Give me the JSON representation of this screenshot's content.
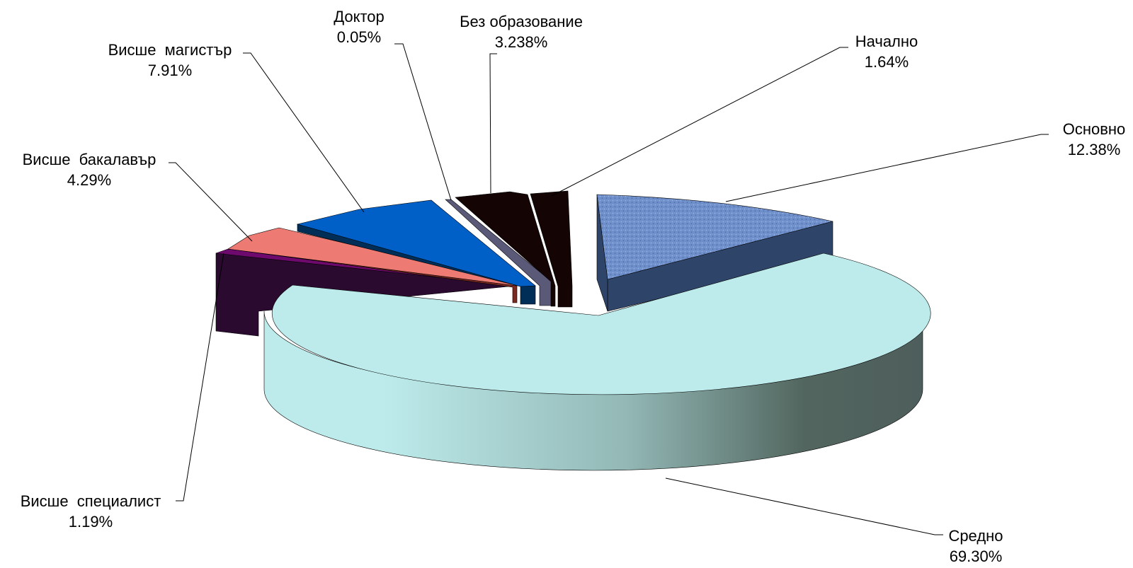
{
  "chart_data": {
    "type": "pie",
    "title": "",
    "style": "3d-exploded",
    "slices": [
      {
        "label": "Основно",
        "value": 12.38,
        "value_label": "12.38%",
        "color": "#6F8FCB",
        "side_color": "#2F4469",
        "pattern": "textured"
      },
      {
        "label": "Средно",
        "value": 69.3,
        "value_label": "69.30%",
        "color": "#BDEBEB",
        "side_color": "#52665F"
      },
      {
        "label": "Висше  специалист",
        "value": 1.19,
        "value_label": "1.19%",
        "color": "#6E0A6E",
        "side_color": "#2A0A2F"
      },
      {
        "label": "Висше  бакалавър",
        "value": 4.29,
        "value_label": "4.29%",
        "color": "#EE7A74",
        "side_color": "#7A2A20"
      },
      {
        "label": "Висше  магистър",
        "value": 7.91,
        "value_label": "7.91%",
        "color": "#0060C8",
        "side_color": "#002E57"
      },
      {
        "label": "Доктор",
        "value": 0.05,
        "value_label": "0.05%",
        "color": "#5A5A78",
        "side_color": "#5A5A78"
      },
      {
        "label": "Без образование",
        "value": 3.238,
        "value_label": "3.238%",
        "color": "#140404",
        "side_color": "#140404"
      },
      {
        "label": "Начално",
        "value": 1.64,
        "value_label": "1.64%",
        "color": "#140404",
        "side_color": "#140404"
      }
    ]
  }
}
